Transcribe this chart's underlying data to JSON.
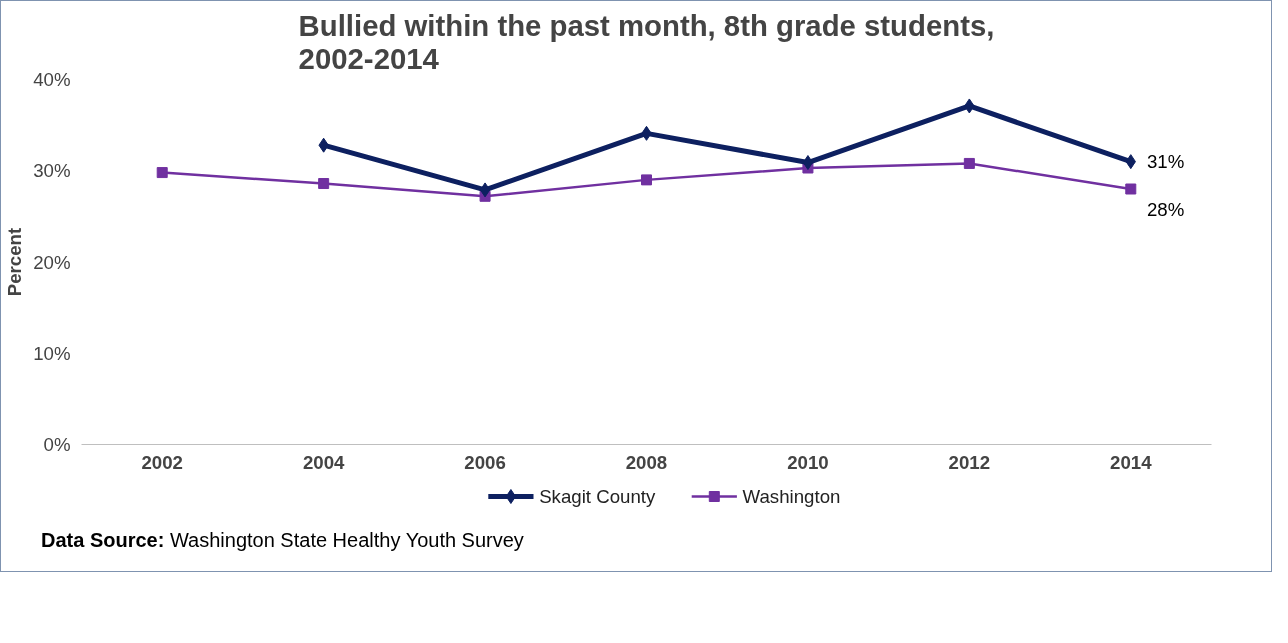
{
  "chart_data": {
    "type": "line",
    "title": "Bullied within the past month, 8th grade students, 2002-2014",
    "ylabel": "Percent",
    "categories": [
      "2002",
      "2004",
      "2006",
      "2008",
      "2010",
      "2012",
      "2014"
    ],
    "series": [
      {
        "name": "Skagit County",
        "color": "#0d2060",
        "marker": "diamond",
        "values": [
          null,
          32.8,
          27.9,
          34.1,
          30.9,
          37.1,
          31
        ],
        "value_labels": [
          null,
          null,
          null,
          null,
          null,
          null,
          "31%"
        ]
      },
      {
        "name": "Washington",
        "color": "#7030a0",
        "marker": "square",
        "values": [
          29.8,
          28.6,
          27.2,
          29.0,
          30.3,
          30.8,
          28
        ],
        "value_labels": [
          null,
          null,
          null,
          null,
          null,
          null,
          "28%"
        ]
      }
    ],
    "ylim": [
      0,
      40
    ],
    "yticks": [
      {
        "value": 0,
        "label": "0%"
      },
      {
        "value": 10,
        "label": "10%"
      },
      {
        "value": 20,
        "label": "20%"
      },
      {
        "value": 30,
        "label": "30%"
      },
      {
        "value": 40,
        "label": "40%"
      }
    ],
    "grid": false,
    "legend": "bottom",
    "annotations": [
      "Data Source: Washington State Healthy Youth Survey"
    ]
  }
}
